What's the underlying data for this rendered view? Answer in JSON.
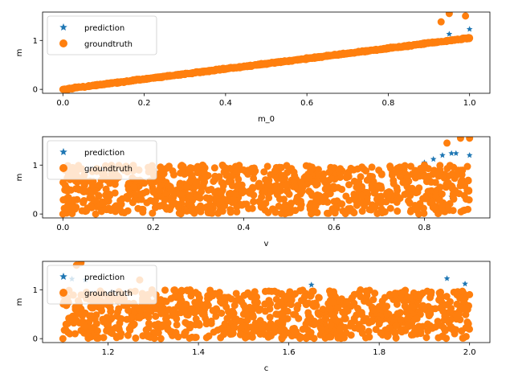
{
  "chart_data": [
    {
      "type": "scatter",
      "xlabel": "m_0",
      "ylabel": "m",
      "xlim": [
        -0.05,
        1.05
      ],
      "ylim": [
        -0.08,
        1.58
      ],
      "xticks": [
        0.0,
        0.2,
        0.4,
        0.6,
        0.8,
        1.0
      ],
      "xtick_labels": [
        "0.0",
        "0.2",
        "0.4",
        "0.6",
        "0.8",
        "1.0"
      ],
      "yticks": [
        0,
        1
      ],
      "ytick_labels": [
        "0",
        "1"
      ],
      "legend_position": "top-left",
      "relationship": "m ≈ 1.05·m_0 (near-linear), a few outliers up to ~1.55 near m_0 ≈ 0.95–1.0",
      "series": [
        {
          "name": "prediction",
          "marker": "star",
          "color": "#1f77b4",
          "points": [
            [
              0.0,
              0.0
            ],
            [
              0.1,
              0.1
            ],
            [
              0.2,
              0.21
            ],
            [
              0.3,
              0.31
            ],
            [
              0.4,
              0.42
            ],
            [
              0.5,
              0.52
            ],
            [
              0.6,
              0.63
            ],
            [
              0.7,
              0.73
            ],
            [
              0.8,
              0.84
            ],
            [
              0.9,
              0.95
            ],
            [
              0.95,
              1.13
            ],
            [
              1.0,
              1.23
            ]
          ]
        },
        {
          "name": "groundtruth",
          "marker": "circle",
          "color": "#ff7f0e",
          "points": [
            [
              0.0,
              0.0
            ],
            [
              0.1,
              0.1
            ],
            [
              0.2,
              0.21
            ],
            [
              0.3,
              0.32
            ],
            [
              0.4,
              0.42
            ],
            [
              0.5,
              0.53
            ],
            [
              0.6,
              0.63
            ],
            [
              0.7,
              0.74
            ],
            [
              0.8,
              0.85
            ],
            [
              0.9,
              0.95
            ],
            [
              0.93,
              1.38
            ],
            [
              0.95,
              1.55
            ],
            [
              0.99,
              1.5
            ],
            [
              1.0,
              1.05
            ]
          ]
        }
      ]
    },
    {
      "type": "scatter",
      "xlabel": "v",
      "ylabel": "m",
      "xlim": [
        -0.045,
        0.945
      ],
      "ylim": [
        -0.08,
        1.58
      ],
      "xticks": [
        0.0,
        0.2,
        0.4,
        0.6,
        0.8
      ],
      "xtick_labels": [
        "0.0",
        "0.2",
        "0.4",
        "0.6",
        "0.8"
      ],
      "yticks": [
        0,
        1
      ],
      "ytick_labels": [
        "0",
        "1"
      ],
      "legend_position": "top-left",
      "relationship": "m roughly uniform in [0, 1] for v in [0, 0.9]; upper outliers up to ~1.55 near v ≈ 0.8–0.9",
      "series": [
        {
          "name": "prediction",
          "marker": "star",
          "color": "#1f77b4",
          "points": [
            [
              0.8,
              1.05
            ],
            [
              0.82,
              1.12
            ],
            [
              0.84,
              1.2
            ],
            [
              0.86,
              1.24
            ],
            [
              0.87,
              1.24
            ],
            [
              0.9,
              1.2
            ],
            [
              0.86,
              0.35
            ]
          ]
        },
        {
          "name": "groundtruth",
          "marker": "circle",
          "color": "#ff7f0e",
          "points": [
            [
              0.0,
              0.0
            ],
            [
              0.2,
              0.5
            ],
            [
              0.4,
              0.9
            ],
            [
              0.6,
              0.1
            ],
            [
              0.8,
              1.0
            ],
            [
              0.85,
              1.45
            ],
            [
              0.88,
              1.55
            ],
            [
              0.9,
              1.55
            ]
          ]
        }
      ]
    },
    {
      "type": "scatter",
      "xlabel": "c",
      "ylabel": "m",
      "xlim": [
        1.055,
        2.045
      ],
      "ylim": [
        -0.08,
        1.58
      ],
      "xticks": [
        1.2,
        1.4,
        1.6,
        1.8,
        2.0
      ],
      "xtick_labels": [
        "1.2",
        "1.4",
        "1.6",
        "1.8",
        "2.0"
      ],
      "yticks": [
        0,
        1
      ],
      "ytick_labels": [
        "0",
        "1"
      ],
      "legend_position": "top-left",
      "relationship": "m roughly uniform in [0, 1] for c in [1.1, 2.0]; upper outliers up to ~1.55 near c ≈ 1.1–1.3",
      "series": [
        {
          "name": "prediction",
          "marker": "star",
          "color": "#1f77b4",
          "points": [
            [
              1.12,
              1.22
            ],
            [
              1.15,
              1.2
            ],
            [
              1.65,
              1.1
            ],
            [
              1.95,
              1.23
            ],
            [
              1.99,
              1.12
            ]
          ]
        },
        {
          "name": "groundtruth",
          "marker": "circle",
          "color": "#ff7f0e",
          "points": [
            [
              1.1,
              0.0
            ],
            [
              1.13,
              1.5
            ],
            [
              1.14,
              1.55
            ],
            [
              1.27,
              1.2
            ],
            [
              1.5,
              0.5
            ],
            [
              1.8,
              0.3
            ],
            [
              2.0,
              0.9
            ]
          ]
        }
      ]
    }
  ]
}
